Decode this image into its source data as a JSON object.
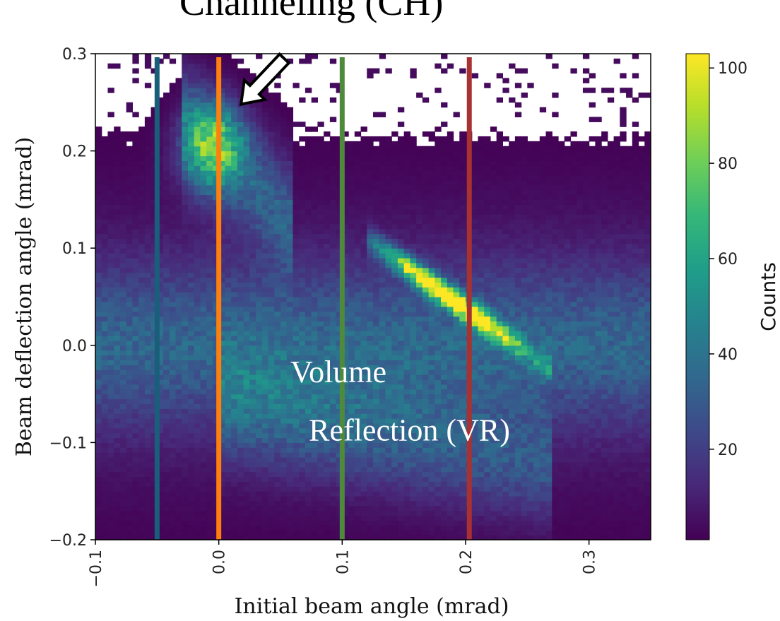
{
  "chart_data": {
    "type": "heatmap",
    "xlabel": "Initial beam angle (mrad)",
    "ylabel": "Beam deflection angle (mrad)",
    "colorbar_label": "Counts",
    "colormap": "viridis",
    "xlim": [
      -0.1,
      0.35
    ],
    "ylim": [
      -0.2,
      0.3
    ],
    "x_ticks": [
      -0.1,
      0.0,
      0.1,
      0.2,
      0.3
    ],
    "x_tick_labels": [
      "−0.1",
      "0.0",
      "0.1",
      "0.2",
      "0.3"
    ],
    "y_ticks": [
      -0.2,
      -0.1,
      0.0,
      0.1,
      0.2,
      0.3
    ],
    "y_tick_labels": [
      "−0.2",
      "−0.1",
      "0.0",
      "0.1",
      "0.2",
      "0.3"
    ],
    "colorbar_range": [
      1,
      103
    ],
    "colorbar_ticks": [
      20,
      40,
      60,
      80,
      100
    ],
    "colorbar_tick_labels": [
      "20",
      "40",
      "60",
      "80",
      "100"
    ],
    "bins": {
      "nx": 90,
      "ny": 100
    },
    "features": {
      "amorphous_core": {
        "y_center": 0.0,
        "y_sigma": 0.055,
        "peak_counts": 45
      },
      "channeling_peak": {
        "x": -0.005,
        "y": 0.205,
        "peak_counts": 60
      },
      "vr_stripe": {
        "x_start": 0.12,
        "y_start": 0.11,
        "x_end": 0.27,
        "y_end": -0.025,
        "peak_counts": 100
      }
    },
    "vertical_lines": [
      {
        "x": -0.05,
        "color": "#1a5f7a"
      },
      {
        "x": 0.0,
        "color": "#ff7f0e"
      },
      {
        "x": 0.1,
        "color": "#4f8a3c"
      },
      {
        "x": 0.203,
        "color": "#a83232"
      }
    ],
    "annotations": [
      {
        "id": "ch",
        "text": "Channeling (CH)",
        "x": 0.075,
        "y": 0.34
      },
      {
        "id": "vr1",
        "text": "Volume",
        "x": 0.058,
        "y": -0.038
      },
      {
        "id": "vr2",
        "text": "Reflection (VR)",
        "x": 0.073,
        "y": -0.098
      }
    ],
    "arrow": {
      "from_x": 0.053,
      "from_y": 0.295,
      "to_x": 0.018,
      "to_y": 0.248
    }
  }
}
